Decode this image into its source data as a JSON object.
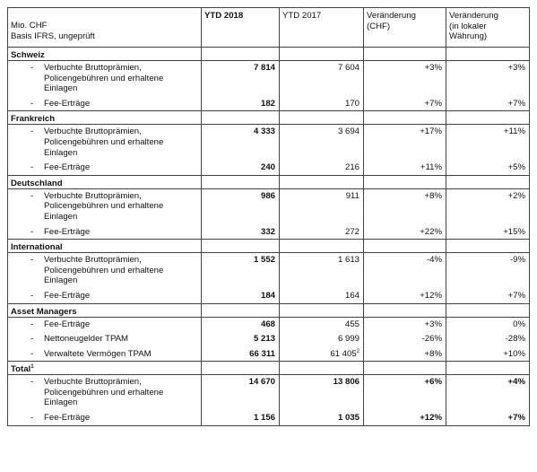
{
  "header": {
    "unit_line1": "Mio. CHF",
    "unit_line2": "Basis IFRS, ungeprüft",
    "col_ytd2018": "YTD 2018",
    "col_ytd2017": "YTD 2017",
    "col_chg_chf_1": "Veränderung",
    "col_chg_chf_2": "(CHF)",
    "col_chg_local_1": "Veränderung",
    "col_chg_local_2": "(in lokaler",
    "col_chg_local_3": "Währung)"
  },
  "dash": "-",
  "sections": [
    {
      "title": "Schweiz",
      "items": [
        {
          "label_lines": [
            "Verbuchte Bruttoprämien,",
            "Policengebühren und erhaltene",
            "Einlagen"
          ],
          "y2018": "7 814",
          "y2017": "7 604",
          "chg_chf": "+3%",
          "chg_local": "+3%"
        },
        {
          "label_lines": [
            "Fee-Erträge"
          ],
          "y2018": "182",
          "y2017": "170",
          "chg_chf": "+7%",
          "chg_local": "+7%"
        }
      ]
    },
    {
      "title": "Frankreich",
      "items": [
        {
          "label_lines": [
            "Verbuchte Bruttoprämien,",
            "Policengebühren und erhaltene",
            "Einlagen"
          ],
          "y2018": "4 333",
          "y2017": "3 694",
          "chg_chf": "+17%",
          "chg_local": "+11%"
        },
        {
          "label_lines": [
            "Fee-Erträge"
          ],
          "y2018": "240",
          "y2017": "216",
          "chg_chf": "+11%",
          "chg_local": "+5%"
        }
      ]
    },
    {
      "title": "Deutschland",
      "items": [
        {
          "label_lines": [
            "Verbuchte Bruttoprämien,",
            "Policengebühren und erhaltene",
            "Einlagen"
          ],
          "y2018": "986",
          "y2017": "911",
          "chg_chf": "+8%",
          "chg_local": "+2%"
        },
        {
          "label_lines": [
            "Fee-Erträge"
          ],
          "y2018": "332",
          "y2017": "272",
          "chg_chf": "+22%",
          "chg_local": "+15%"
        }
      ]
    },
    {
      "title": "International",
      "items": [
        {
          "label_lines": [
            "Verbuchte Bruttoprämien,",
            "Policengebühren und erhaltene",
            "Einlagen"
          ],
          "y2018": "1 552",
          "y2017": "1 613",
          "chg_chf": "-4%",
          "chg_local": "-9%"
        },
        {
          "label_lines": [
            "Fee-Erträge"
          ],
          "y2018": "184",
          "y2017": "164",
          "chg_chf": "+12%",
          "chg_local": "+7%"
        }
      ]
    },
    {
      "title": "Asset Managers",
      "items": [
        {
          "label_lines": [
            "Fee-Erträge"
          ],
          "y2018": "468",
          "y2017": "455",
          "chg_chf": "+3%",
          "chg_local": "0%"
        },
        {
          "label_lines": [
            "Nettoneugelder TPAM"
          ],
          "y2018": "5 213",
          "y2017": "6 999",
          "chg_chf": "-26%",
          "chg_local": "-28%"
        },
        {
          "label_lines": [
            "Verwaltete Vermögen TPAM"
          ],
          "y2018": "66 311",
          "y2017": "61 405",
          "y2017_footnote": "2",
          "chg_chf": "+8%",
          "chg_local": "+10%"
        }
      ]
    },
    {
      "title": "Total",
      "title_footnote": "1",
      "total": true,
      "items": [
        {
          "label_lines": [
            "Verbuchte Bruttoprämien,",
            "Policengebühren und erhaltene",
            "Einlagen"
          ],
          "y2018": "14 670",
          "y2017": "13 806",
          "chg_chf": "+6%",
          "chg_local": "+4%"
        },
        {
          "label_lines": [
            "Fee-Erträge"
          ],
          "y2018": "1 156",
          "y2017": "1 035",
          "chg_chf": "+12%",
          "chg_local": "+7%"
        }
      ]
    }
  ]
}
